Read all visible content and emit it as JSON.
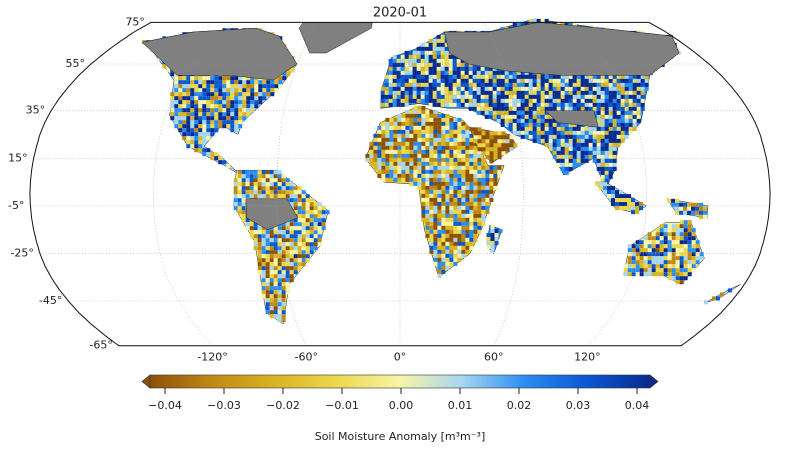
{
  "title": "2020-01",
  "map": {
    "projection": "robinson",
    "grid": true,
    "land_color": "#808080",
    "lat_ticks": [
      {
        "value": 75,
        "label": "75°"
      },
      {
        "value": 55,
        "label": "55°"
      },
      {
        "value": 35,
        "label": "35°"
      },
      {
        "value": 15,
        "label": "15°"
      },
      {
        "value": -5,
        "label": "-5°"
      },
      {
        "value": -25,
        "label": "-25°"
      },
      {
        "value": -45,
        "label": "-45°"
      },
      {
        "value": -65,
        "label": "-65°"
      }
    ],
    "lon_ticks": [
      {
        "value": -120,
        "label": "-120°"
      },
      {
        "value": -60,
        "label": "-60°"
      },
      {
        "value": 0,
        "label": "0°"
      },
      {
        "value": 60,
        "label": "60°"
      },
      {
        "value": 120,
        "label": "120°"
      }
    ]
  },
  "colorbar": {
    "label": "Soil Moisture Anomaly [m³m⁻³]",
    "lim": [
      -0.04,
      0.04
    ],
    "ticks": [
      {
        "value": -0.04,
        "label": "−0.04"
      },
      {
        "value": -0.03,
        "label": "−0.03"
      },
      {
        "value": -0.02,
        "label": "−0.02"
      },
      {
        "value": -0.01,
        "label": "−0.01"
      },
      {
        "value": 0,
        "label": "0.00"
      },
      0.01,
      0.02,
      0.03,
      0.04
    ],
    "colors": [
      "#8c5109",
      "#bf8a14",
      "#d9b424",
      "#ecd84e",
      "#f7f5a8",
      "#a6d6f0",
      "#2b8cf2",
      "#0b56d2",
      "#0a2a8e"
    ]
  }
}
